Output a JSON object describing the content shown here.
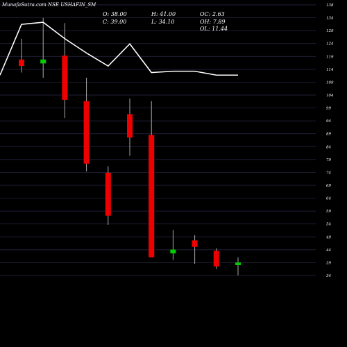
{
  "header": {
    "title": "MunafaSutra.com NSE USHAFIN_SM",
    "stats": [
      {
        "label": "O",
        "value": "38.00"
      },
      {
        "label": "H",
        "value": "41.00"
      },
      {
        "label": "OC",
        "value": "2.63"
      },
      {
        "label": "C",
        "value": "39.00"
      },
      {
        "label": "L",
        "value": "34.10"
      },
      {
        "label": "OH",
        "value": "7.89"
      },
      {
        "label": "OL",
        "value": "11.44"
      }
    ]
  },
  "colors": {
    "background": "#000000",
    "up": "#00cc00",
    "down": "#ee0000",
    "wick": "#aaaaaa",
    "grid": "#2a2a4a",
    "line": "#ffffff"
  },
  "chart_data": {
    "type": "candlestick",
    "ylim": [
      34,
      138
    ],
    "yticks": [
      "138",
      "134",
      "129",
      "124",
      "119",
      "114",
      "109",
      "104",
      "99",
      "94",
      "89",
      "84",
      "79",
      "74",
      "69",
      "64",
      "59",
      "54",
      "49",
      "44",
      "39",
      "34"
    ],
    "candles": [
      {
        "open": 117.0,
        "high": 125.0,
        "low": 112.0,
        "close": 114.5,
        "dir": "down"
      },
      {
        "open": 115.5,
        "high": 133.0,
        "low": 110.0,
        "close": 117.0,
        "dir": "up"
      },
      {
        "open": 118.5,
        "high": 131.0,
        "low": 94.5,
        "close": 101.5,
        "dir": "down"
      },
      {
        "open": 101.0,
        "high": 110.0,
        "low": 74.0,
        "close": 77.0,
        "dir": "down"
      },
      {
        "open": 73.5,
        "high": 76.0,
        "low": 53.5,
        "close": 57.0,
        "dir": "down"
      },
      {
        "open": 96.0,
        "high": 102.0,
        "low": 80.0,
        "close": 87.0,
        "dir": "down"
      },
      {
        "open": 88.0,
        "high": 101.0,
        "low": 41.0,
        "close": 41.0,
        "dir": "down"
      },
      {
        "open": 42.5,
        "high": 51.5,
        "low": 40.0,
        "close": 44.0,
        "dir": "up"
      },
      {
        "open": 47.5,
        "high": 49.5,
        "low": 38.5,
        "close": 45.0,
        "dir": "down"
      },
      {
        "open": 43.5,
        "high": 44.5,
        "low": 36.5,
        "close": 37.5,
        "dir": "down"
      },
      {
        "open": 38.0,
        "high": 41.0,
        "low": 34.1,
        "close": 39.0,
        "dir": "up"
      }
    ],
    "line": [
      111,
      130.5,
      131.3,
      125,
      119.5,
      114.5,
      123,
      112,
      112.5,
      112.5,
      111,
      111
    ]
  }
}
